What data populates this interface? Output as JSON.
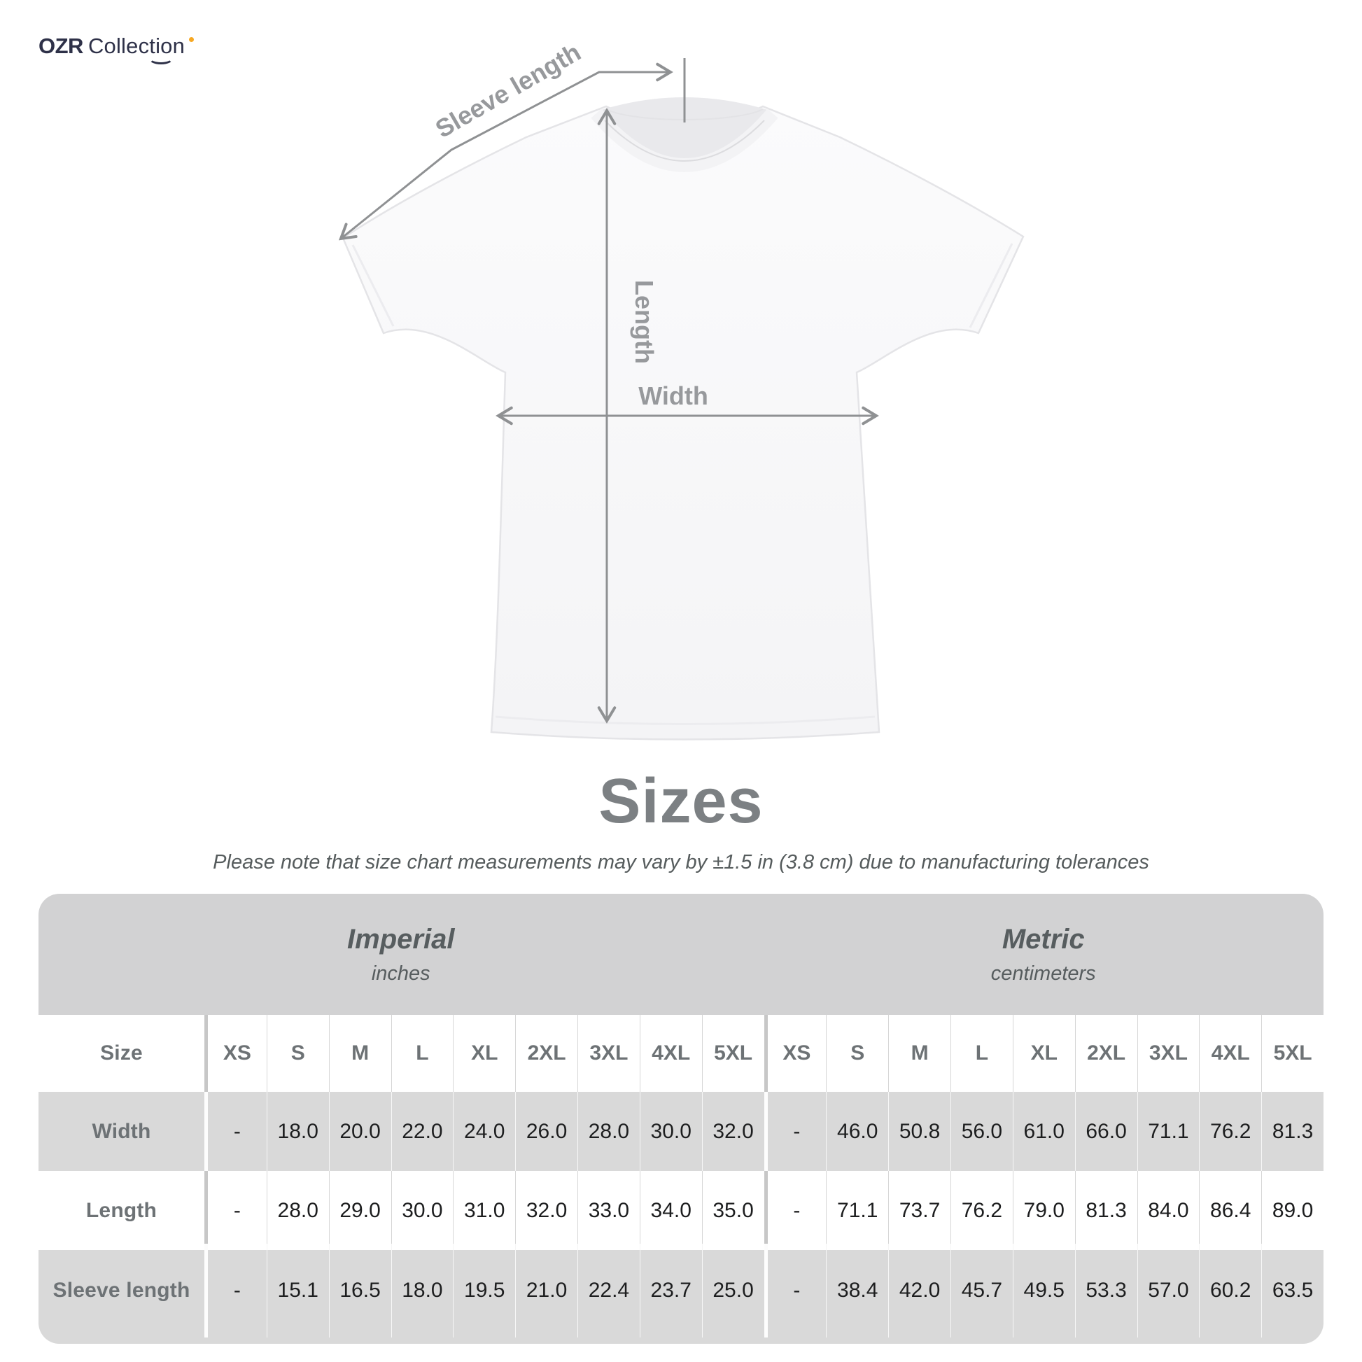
{
  "logo": {
    "brand_bold": "OZR",
    "brand_light": "Collection"
  },
  "diagram": {
    "sleeve_label": "Sleeve length",
    "length_label": "Length",
    "width_label": "Width"
  },
  "heading": {
    "title": "Sizes",
    "note": "Please note that size chart measurements may vary by ±1.5 in (3.8 cm) due to manufacturing tolerances"
  },
  "table": {
    "unit_groups": [
      {
        "name": "Imperial",
        "unit": "inches"
      },
      {
        "name": "Metric",
        "unit": "centimeters"
      }
    ],
    "size_col_header": "Size",
    "sizes": [
      "XS",
      "S",
      "M",
      "L",
      "XL",
      "2XL",
      "3XL",
      "4XL",
      "5XL"
    ],
    "rows": [
      {
        "label": "Width",
        "imperial": [
          "-",
          "18.0",
          "20.0",
          "22.0",
          "24.0",
          "26.0",
          "28.0",
          "30.0",
          "32.0"
        ],
        "metric": [
          "-",
          "46.0",
          "50.8",
          "56.0",
          "61.0",
          "66.0",
          "71.1",
          "76.2",
          "81.3"
        ]
      },
      {
        "label": "Length",
        "imperial": [
          "-",
          "28.0",
          "29.0",
          "30.0",
          "31.0",
          "32.0",
          "33.0",
          "34.0",
          "35.0"
        ],
        "metric": [
          "-",
          "71.1",
          "73.7",
          "76.2",
          "79.0",
          "81.3",
          "84.0",
          "86.4",
          "89.0"
        ]
      },
      {
        "label": "Sleeve length",
        "imperial": [
          "-",
          "15.1",
          "16.5",
          "18.0",
          "19.5",
          "21.0",
          "22.4",
          "23.7",
          "25.0"
        ],
        "metric": [
          "-",
          "38.4",
          "42.0",
          "45.7",
          "49.5",
          "53.3",
          "57.0",
          "60.2",
          "63.5"
        ]
      }
    ]
  },
  "colors": {
    "logo_navy": "#2e3148",
    "logo_accent_orange": "#f7a823",
    "measure_line_gray": "#8f9193",
    "header_band_gray": "#d2d2d3",
    "row_gray": "#d9d9d9",
    "label_gray": "#6d7275",
    "value_dark": "#1d1e1f",
    "title_gray": "#7c8083"
  }
}
